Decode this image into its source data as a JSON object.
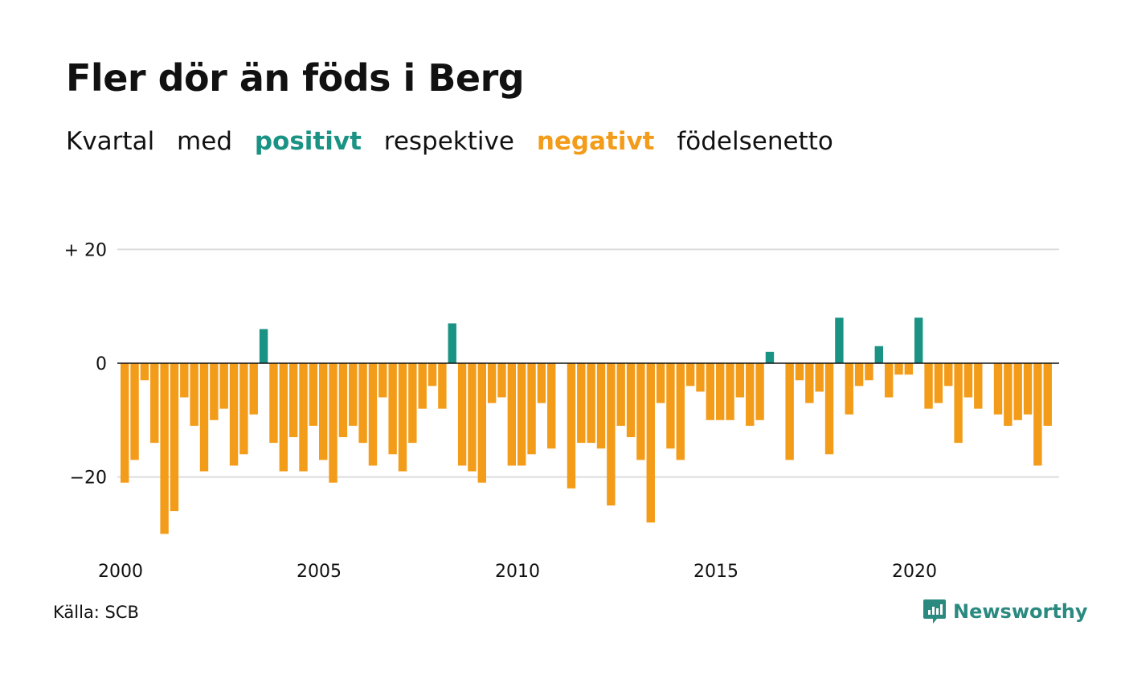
{
  "title": "Fler dör än föds i Berg",
  "subtitle": {
    "part1": "Kvartal",
    "part2": "med",
    "positive_word": "positivt",
    "part3": "respektive",
    "negative_word": "negativt",
    "part4": "födelsenetto"
  },
  "source": "Källa: SCB",
  "brand": {
    "name": "Newsworthy",
    "icon": "newsworthy-logo-icon"
  },
  "colors": {
    "positive": "#1a9384",
    "negative": "#f39c1a",
    "grid": "#dddddd",
    "zero_line": "#111111"
  },
  "chart_data": {
    "type": "bar",
    "start_year": 2000,
    "period": "quarter",
    "x_ticks": [
      "2000",
      "2005",
      "2010",
      "2015",
      "2020"
    ],
    "y_ticks": [
      {
        "value": 20,
        "label": "+ 20"
      },
      {
        "value": 0,
        "label": "0"
      },
      {
        "value": -20,
        "label": "−20"
      }
    ],
    "ylim": [
      -30,
      20
    ],
    "grid": true,
    "values": [
      -21,
      -17,
      -3,
      -14,
      -30,
      -26,
      -6,
      -11,
      -19,
      -10,
      -8,
      -18,
      -16,
      -9,
      6,
      -14,
      -19,
      -13,
      -19,
      -11,
      -17,
      -21,
      -13,
      -11,
      -14,
      -18,
      -6,
      -16,
      -19,
      -14,
      -8,
      -4,
      -8,
      7,
      -18,
      -19,
      -21,
      -7,
      -6,
      -18,
      -18,
      -16,
      -7,
      -15,
      null,
      -22,
      -14,
      -14,
      -15,
      -25,
      -11,
      -13,
      -17,
      -28,
      -7,
      -15,
      -17,
      -4,
      -5,
      -10,
      -10,
      -10,
      -6,
      -11,
      -10,
      2,
      null,
      -17,
      -3,
      -7,
      -5,
      -16,
      8,
      -9,
      -4,
      -3,
      3,
      -6,
      -2,
      -2,
      8,
      -8,
      -7,
      -4,
      -14,
      -6,
      -8,
      null,
      -9,
      -11,
      -10,
      -9,
      -18,
      -11
    ]
  }
}
